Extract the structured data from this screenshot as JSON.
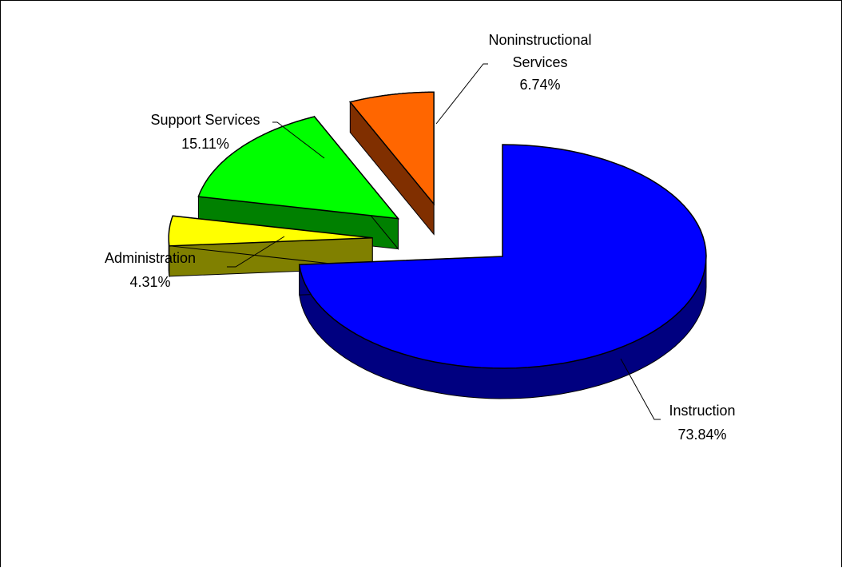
{
  "chart_data": {
    "type": "pie",
    "title": "",
    "legend": "none",
    "style": "3d-exploded",
    "slices": [
      {
        "label": "Instruction",
        "value": 73.84,
        "value_label": "73.84%",
        "color": "#0000FF",
        "side_color": "#000080"
      },
      {
        "label": "Administration",
        "value": 4.31,
        "value_label": "4.31%",
        "color": "#FFFF00",
        "side_color": "#808000"
      },
      {
        "label": "Support Services",
        "value": 15.11,
        "value_label": "15.11%",
        "color": "#00FF00",
        "side_color": "#008000"
      },
      {
        "label": "Noninstructional Services",
        "value": 6.74,
        "value_label": "6.74%",
        "color": "#FF6600",
        "side_color": "#802F00"
      }
    ]
  }
}
